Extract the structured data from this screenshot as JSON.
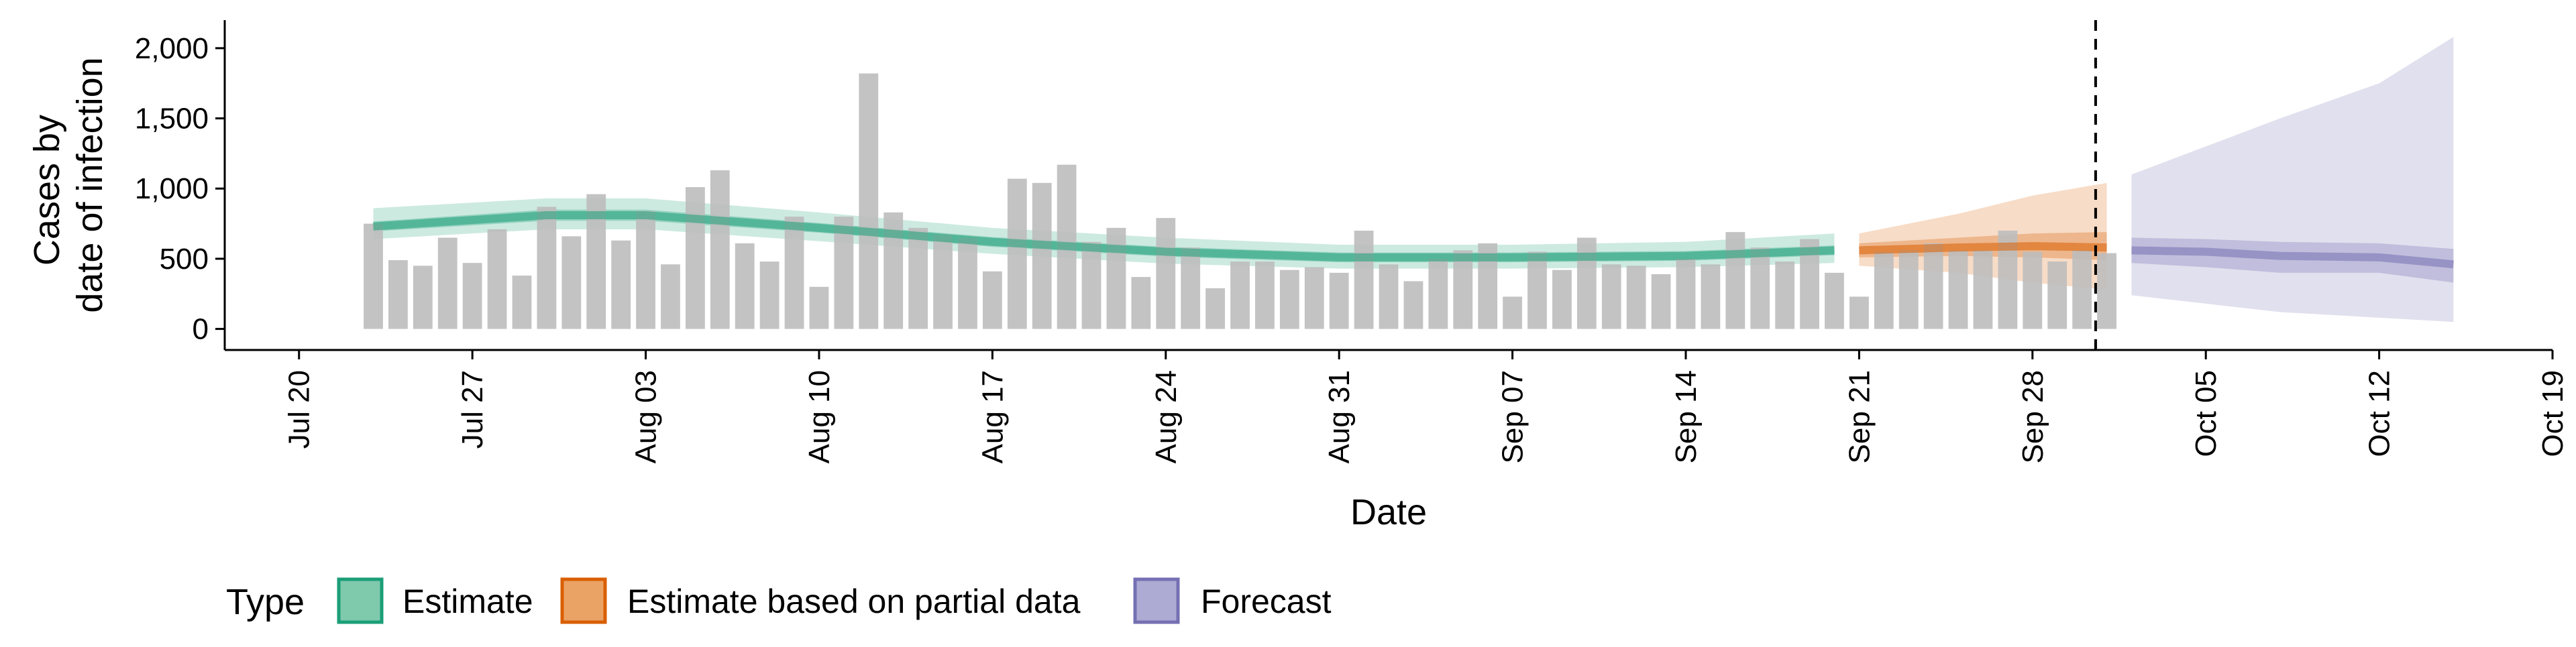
{
  "chart_data": {
    "type": "bar",
    "xlabel": "Date",
    "ylabel_lines": [
      "Cases by",
      "date of infection"
    ],
    "y_ticks": [
      0,
      500,
      1000,
      1500,
      2000
    ],
    "y_tick_labels": [
      "0",
      "500",
      "1,000",
      "1,500",
      "2,000"
    ],
    "ylim": [
      -150,
      2200
    ],
    "x_range": [
      "2020-07-17",
      "2020-10-19"
    ],
    "x_ticks": [
      "2020-07-20",
      "2020-07-27",
      "2020-08-03",
      "2020-08-10",
      "2020-08-17",
      "2020-08-24",
      "2020-08-31",
      "2020-09-07",
      "2020-09-14",
      "2020-09-21",
      "2020-09-28",
      "2020-10-05",
      "2020-10-12",
      "2020-10-19"
    ],
    "x_tick_labels": [
      "Jul 20",
      "Jul 27",
      "Aug 03",
      "Aug 10",
      "Aug 17",
      "Aug 24",
      "Aug 31",
      "Sep 07",
      "Sep 14",
      "Sep 21",
      "Sep 28",
      "Oct 05",
      "Oct 12",
      "Oct 19"
    ],
    "forecast_start_marker": "2020-10-01",
    "grid": false,
    "legend": {
      "title": "Type",
      "position": "bottom-left",
      "items": [
        {
          "label": "Estimate",
          "fill": "#7fc9ad",
          "stroke": "#1b9e77"
        },
        {
          "label": "Estimate based on partial data",
          "fill": "#eba265",
          "stroke": "#d95f02"
        },
        {
          "label": "Forecast",
          "fill": "#adaad4",
          "stroke": "#7570b3"
        }
      ]
    },
    "bar_color": "#bdbdbd",
    "bars": {
      "dates": [
        "2020-07-23",
        "2020-07-24",
        "2020-07-25",
        "2020-07-26",
        "2020-07-27",
        "2020-07-28",
        "2020-07-29",
        "2020-07-30",
        "2020-07-31",
        "2020-08-01",
        "2020-08-02",
        "2020-08-03",
        "2020-08-04",
        "2020-08-05",
        "2020-08-06",
        "2020-08-07",
        "2020-08-08",
        "2020-08-09",
        "2020-08-10",
        "2020-08-11",
        "2020-08-12",
        "2020-08-13",
        "2020-08-14",
        "2020-08-15",
        "2020-08-16",
        "2020-08-17",
        "2020-08-18",
        "2020-08-19",
        "2020-08-20",
        "2020-08-21",
        "2020-08-22",
        "2020-08-23",
        "2020-08-24",
        "2020-08-25",
        "2020-08-26",
        "2020-08-27",
        "2020-08-28",
        "2020-08-29",
        "2020-08-30",
        "2020-08-31",
        "2020-09-01",
        "2020-09-02",
        "2020-09-03",
        "2020-09-04",
        "2020-09-05",
        "2020-09-06",
        "2020-09-07",
        "2020-09-08",
        "2020-09-09",
        "2020-09-10",
        "2020-09-11",
        "2020-09-12",
        "2020-09-13",
        "2020-09-14",
        "2020-09-15",
        "2020-09-16",
        "2020-09-17",
        "2020-09-18",
        "2020-09-19",
        "2020-09-20",
        "2020-09-21",
        "2020-09-22",
        "2020-09-23",
        "2020-09-24",
        "2020-09-25",
        "2020-09-26",
        "2020-09-27",
        "2020-09-28",
        "2020-09-29",
        "2020-09-30",
        "2020-10-01"
      ],
      "values": [
        750,
        490,
        450,
        650,
        470,
        710,
        380,
        870,
        660,
        960,
        630,
        840,
        460,
        1010,
        1130,
        610,
        480,
        800,
        300,
        800,
        1820,
        830,
        720,
        670,
        650,
        410,
        1070,
        1040,
        1170,
        620,
        720,
        370,
        790,
        580,
        290,
        480,
        480,
        420,
        440,
        400,
        700,
        460,
        340,
        500,
        560,
        610,
        230,
        550,
        420,
        650,
        460,
        450,
        390,
        500,
        460,
        690,
        580,
        480,
        640,
        400,
        230,
        550,
        560,
        610,
        560,
        560,
        700,
        550,
        480,
        560,
        540
      ]
    },
    "estimate": {
      "dates": [
        "2020-07-23",
        "2020-07-30",
        "2020-08-03",
        "2020-08-10",
        "2020-08-17",
        "2020-08-24",
        "2020-08-31",
        "2020-09-07",
        "2020-09-14",
        "2020-09-20"
      ],
      "median": [
        730,
        810,
        810,
        720,
        620,
        550,
        510,
        510,
        520,
        560
      ],
      "lower_50": [
        695,
        770,
        770,
        685,
        585,
        515,
        475,
        475,
        485,
        525
      ],
      "upper_50": [
        765,
        850,
        850,
        755,
        655,
        585,
        545,
        545,
        555,
        595
      ],
      "lower_90": [
        640,
        710,
        710,
        625,
        535,
        465,
        430,
        430,
        440,
        470
      ],
      "upper_90": [
        860,
        930,
        930,
        830,
        720,
        650,
        600,
        600,
        620,
        680
      ]
    },
    "partial_estimate": {
      "dates": [
        "2020-09-21",
        "2020-09-25",
        "2020-09-28",
        "2020-10-01"
      ],
      "median": [
        560,
        580,
        590,
        580
      ],
      "lower_50": [
        510,
        520,
        510,
        490
      ],
      "upper_50": [
        610,
        650,
        680,
        690
      ],
      "lower_90": [
        450,
        400,
        330,
        280
      ],
      "upper_90": [
        680,
        820,
        950,
        1040
      ]
    },
    "forecast": {
      "dates": [
        "2020-10-02",
        "2020-10-05",
        "2020-10-08",
        "2020-10-12",
        "2020-10-15"
      ],
      "median": [
        560,
        550,
        520,
        510,
        460
      ],
      "lower_50": [
        470,
        440,
        400,
        400,
        330
      ],
      "upper_50": [
        650,
        640,
        620,
        610,
        570
      ],
      "lower_90": [
        240,
        180,
        120,
        80,
        50
      ],
      "upper_90": [
        1100,
        1300,
        1500,
        1750,
        2080
      ]
    }
  }
}
